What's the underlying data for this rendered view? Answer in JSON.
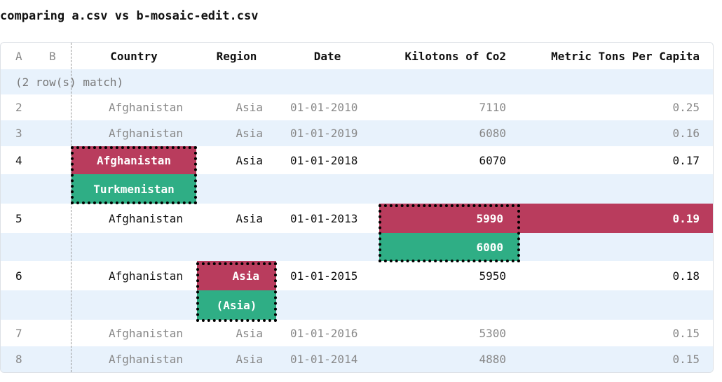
{
  "title": "comparing a.csv vs b-mosaic-edit.csv",
  "columns": {
    "a": "A",
    "b": "B",
    "country": "Country",
    "region": "Region",
    "date": "Date",
    "kilotons": "Kilotons of Co2",
    "per_capita": "Metric Tons Per Capita"
  },
  "match_note": "(2 row(s) match)",
  "rows": [
    {
      "a": "2",
      "country": "Afghanistan",
      "region": "Asia",
      "date": "01-01-2010",
      "kilotons": "7110",
      "per_capita": "0.25"
    },
    {
      "a": "3",
      "country": "Afghanistan",
      "region": "Asia",
      "date": "01-01-2019",
      "kilotons": "6080",
      "per_capita": "0.16"
    },
    {
      "a": "4",
      "country": "Afghanistan",
      "country_new": "Turkmenistan",
      "region": "Asia",
      "date": "01-01-2018",
      "kilotons": "6070",
      "per_capita": "0.17"
    },
    {
      "a": "5",
      "country": "Afghanistan",
      "region": "Asia",
      "date": "01-01-2013",
      "kilotons": "5990",
      "kilotons_new": "6000",
      "per_capita": "0.19"
    },
    {
      "a": "6",
      "country": "Afghanistan",
      "region": "Asia",
      "region_new": "(Asia)",
      "date": "01-01-2015",
      "kilotons": "5950",
      "per_capita": "0.18"
    },
    {
      "a": "7",
      "country": "Afghanistan",
      "region": "Asia",
      "date": "01-01-2016",
      "kilotons": "5300",
      "per_capita": "0.15"
    },
    {
      "a": "8",
      "country": "Afghanistan",
      "region": "Asia",
      "date": "01-01-2014",
      "kilotons": "4880",
      "per_capita": "0.15"
    }
  ],
  "colors": {
    "removed": "#b93c5d",
    "added": "#2fae85",
    "stripe": "#e8f2fc"
  }
}
